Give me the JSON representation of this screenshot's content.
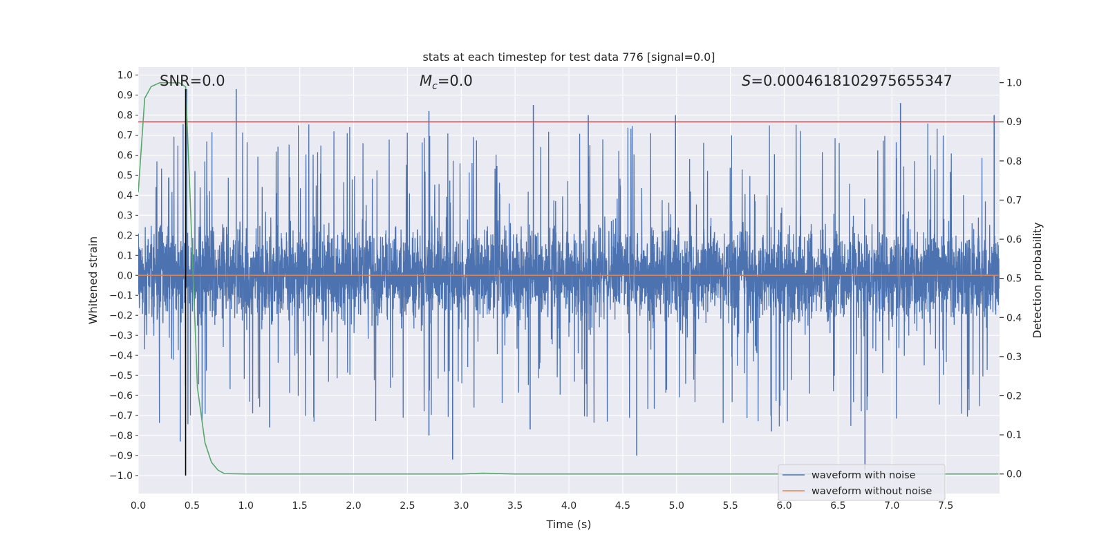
{
  "chart_data": {
    "type": "line",
    "title": "stats at each timestep for test data 776 [signal=0.0]",
    "xlabel": "Time (s)",
    "ylabel_left": "Whitened strain",
    "ylabel_right": "Detection probability",
    "xlim": [
      0.0,
      8.0
    ],
    "ylim_left": [
      -1.09,
      1.04
    ],
    "ylim_right": [
      -0.05,
      1.04
    ],
    "x_ticks": [
      0.0,
      0.5,
      1.0,
      1.5,
      2.0,
      2.5,
      3.0,
      3.5,
      4.0,
      4.5,
      5.0,
      5.5,
      6.0,
      6.5,
      7.0,
      7.5
    ],
    "x_tick_labels": [
      "0.0",
      "0.5",
      "1.0",
      "1.5",
      "2.0",
      "2.5",
      "3.0",
      "3.5",
      "4.0",
      "4.5",
      "5.0",
      "5.5",
      "6.0",
      "6.5",
      "7.0",
      "7.5"
    ],
    "y_left_ticks": [
      1.0,
      0.9,
      0.8,
      0.7,
      0.6,
      0.5,
      0.4,
      0.3,
      0.2,
      0.1,
      0.0,
      -0.1,
      -0.2,
      -0.3,
      -0.4,
      -0.5,
      -0.6,
      -0.7,
      -0.8,
      -0.9,
      -1.0
    ],
    "y_left_tick_labels": [
      "1.0",
      "0.9",
      "0.8",
      "0.7",
      "0.6",
      "0.5",
      "0.4",
      "0.3",
      "0.2",
      "0.1",
      "0.0",
      "−0.1",
      "−0.2",
      "−0.3",
      "−0.4",
      "−0.5",
      "−0.6",
      "−0.7",
      "−0.8",
      "−0.9",
      "−1.0"
    ],
    "y_right_ticks": [
      1.0,
      0.9,
      0.8,
      0.7,
      0.6,
      0.5,
      0.4,
      0.3,
      0.2,
      0.1,
      0.0
    ],
    "y_right_tick_labels": [
      "1.0",
      "0.9",
      "0.8",
      "0.7",
      "0.6",
      "0.5",
      "0.4",
      "0.3",
      "0.2",
      "0.1",
      "0.0"
    ],
    "grid": true,
    "annotations": {
      "snr": "SNR=0.0",
      "mc_symbol": "M",
      "mc_sub": "c",
      "mc_value": "=0.0",
      "s_symbol": "S",
      "s_value": "=0.0004618102975655347"
    },
    "threshold_right": 0.9,
    "vertical_marker_x": 0.44,
    "series": [
      {
        "name": "waveform with noise",
        "axis": "left",
        "color": "#4c72b0",
        "noise": {
          "seed": 776,
          "core_amplitude": 0.16,
          "spike_amplitude": 0.55
        },
        "notable_peaks": [
          {
            "x": 0.45,
            "y": 0.93
          },
          {
            "x": 0.91,
            "y": 0.93
          },
          {
            "x": 2.7,
            "y": 0.82
          },
          {
            "x": 3.67,
            "y": 0.85
          },
          {
            "x": 4.18,
            "y": 0.8
          },
          {
            "x": 7.08,
            "y": 0.86
          },
          {
            "x": 4.99,
            "y": 0.8
          },
          {
            "x": 7.95,
            "y": 0.8
          }
        ],
        "notable_troughs": [
          {
            "x": 0.39,
            "y": -0.83
          },
          {
            "x": 2.92,
            "y": -0.92
          },
          {
            "x": 4.63,
            "y": -0.9
          },
          {
            "x": 6.75,
            "y": -0.97
          },
          {
            "x": 2.7,
            "y": -0.8
          },
          {
            "x": 3.64,
            "y": -0.77
          },
          {
            "x": 5.88,
            "y": -0.78
          },
          {
            "x": 1.22,
            "y": -0.76
          }
        ]
      },
      {
        "name": "waveform without noise",
        "axis": "left",
        "color": "#dd8452",
        "x": [
          0.0,
          7.99
        ],
        "y": [
          0.0,
          0.0
        ]
      },
      {
        "name": "detection probability",
        "axis": "right",
        "color": "#55a868",
        "x": [
          0.0,
          0.06,
          0.12,
          0.2,
          0.3,
          0.38,
          0.44,
          0.48,
          0.55,
          0.62,
          0.68,
          0.74,
          0.8,
          1.0,
          2.0,
          3.0,
          3.2,
          3.5,
          5.0,
          7.0,
          7.99
        ],
        "y": [
          0.72,
          0.96,
          0.99,
          1.0,
          1.0,
          1.0,
          0.99,
          0.72,
          0.22,
          0.08,
          0.03,
          0.01,
          0.001,
          0.0,
          0.0,
          0.0,
          0.002,
          0.0,
          0.0,
          0.0,
          0.0
        ]
      }
    ],
    "legend": {
      "placement": "bottom-right",
      "entries": [
        {
          "label": "waveform with noise",
          "color": "#4c72b0"
        },
        {
          "label": "waveform without noise",
          "color": "#dd8452"
        }
      ]
    },
    "colors": {
      "plot_background": "#eaeaf2",
      "grid": "#ffffff",
      "threshold": "#c44e52",
      "marker": "#000000"
    }
  }
}
